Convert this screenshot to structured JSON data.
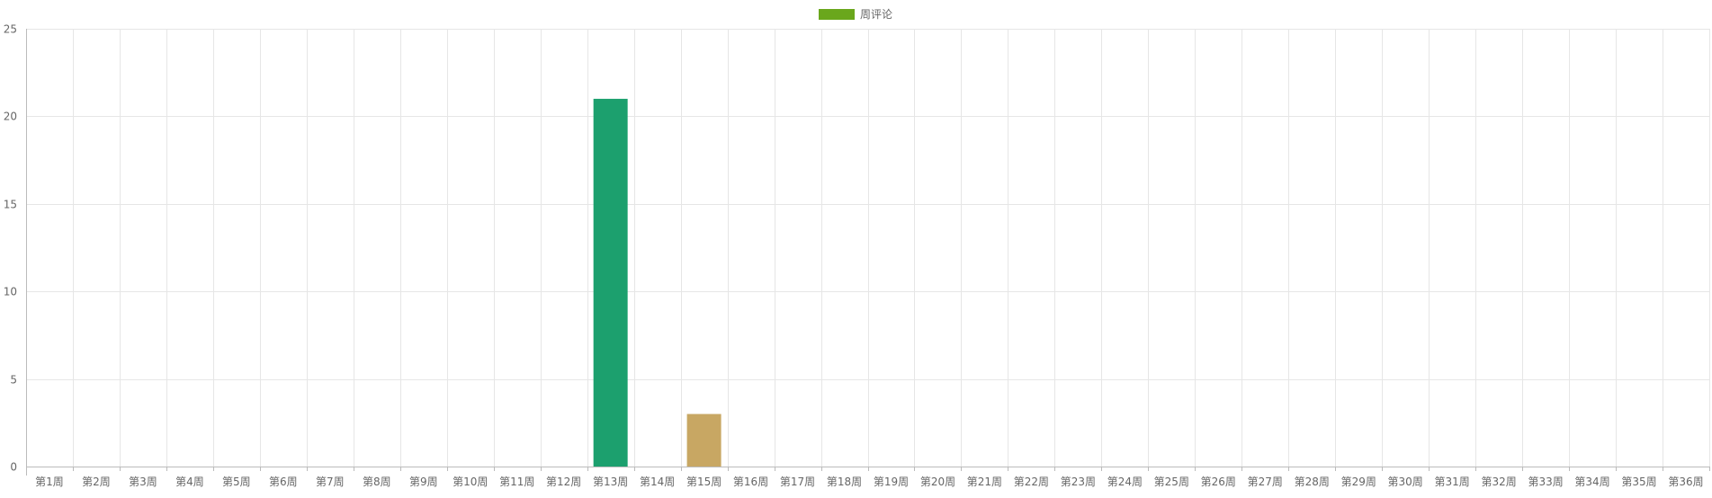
{
  "chart_data": {
    "type": "bar",
    "title": "",
    "xlabel": "",
    "ylabel": "",
    "legend": {
      "position": "top-center",
      "entries": [
        {
          "label": "周评论",
          "color": "#6aa71c"
        }
      ]
    },
    "categories": [
      "第1周",
      "第2周",
      "第3周",
      "第4周",
      "第5周",
      "第6周",
      "第7周",
      "第8周",
      "第9周",
      "第10周",
      "第11周",
      "第12周",
      "第13周",
      "第14周",
      "第15周",
      "第16周",
      "第17周",
      "第18周",
      "第19周",
      "第20周",
      "第21周",
      "第22周",
      "第23周",
      "第24周",
      "第25周",
      "第26周",
      "第27周",
      "第28周",
      "第29周",
      "第30周",
      "第31周",
      "第32周",
      "第33周",
      "第34周",
      "第35周",
      "第36周"
    ],
    "series": [
      {
        "name": "周评论",
        "values": [
          0,
          0,
          0,
          0,
          0,
          0,
          0,
          0,
          0,
          0,
          0,
          0,
          21,
          0,
          3,
          0,
          0,
          0,
          0,
          0,
          0,
          0,
          0,
          0,
          0,
          0,
          0,
          0,
          0,
          0,
          0,
          0,
          0,
          0,
          0,
          0
        ],
        "colors": {
          "12": "#1ca06e",
          "14": "#c8a763"
        }
      }
    ],
    "ylim": [
      0,
      25
    ],
    "yticks": [
      0,
      5,
      10,
      15,
      20,
      25
    ],
    "grid": true,
    "colors": {
      "grid": "#e6e6e6",
      "axis": "#bbbbbb",
      "tick_text": "#666666"
    }
  }
}
